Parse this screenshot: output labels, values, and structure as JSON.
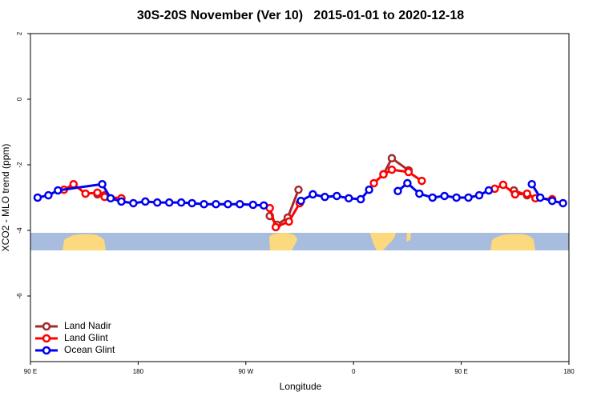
{
  "chart_data": {
    "type": "line",
    "title": "30S-20S November (Ver 10)   2015-01-01 to 2020-12-18",
    "x_label": "Longitude",
    "y_label": "XCO2 - MLO trend (ppm)",
    "xlim": [
      90,
      540
    ],
    "xticks": [
      {
        "value": 90,
        "label": "90 E"
      },
      {
        "value": 180,
        "label": "180"
      },
      {
        "value": 270,
        "label": "90 W"
      },
      {
        "value": 360,
        "label": "0"
      },
      {
        "value": 450,
        "label": "90 E"
      },
      {
        "value": 540,
        "label": "180"
      }
    ],
    "ylim": [
      -8,
      2
    ],
    "yticks": [
      -6,
      -4,
      -2,
      0,
      2
    ],
    "legend": "lower left",
    "series": [
      {
        "name": "Land Nadir",
        "color": "#a52a2a",
        "x": [
          146,
          152,
          null,
          290,
          296,
          305,
          314,
          null,
          385,
          392,
          406,
          null,
          494,
          505
        ],
        "values": [
          -2.9,
          -2.93,
          null,
          -3.56,
          -3.83,
          -3.61,
          -2.76,
          null,
          -2.29,
          -1.8,
          -2.17,
          null,
          -2.78,
          -2.93
        ]
      },
      {
        "name": "Land Glint",
        "color": "#ff0000",
        "x": [
          118,
          126,
          136,
          146,
          152,
          166,
          null,
          290,
          295,
          306,
          315,
          null,
          377,
          385,
          392,
          406,
          417,
          null,
          478,
          485,
          495,
          505,
          512,
          526
        ],
        "values": [
          -2.76,
          -2.59,
          -2.88,
          -2.85,
          -2.98,
          -3.02,
          null,
          -3.32,
          -3.9,
          -3.73,
          -3.17,
          null,
          -2.56,
          -2.29,
          -2.15,
          -2.22,
          -2.49,
          null,
          -2.73,
          -2.61,
          -2.9,
          -2.88,
          -3.02,
          -3.05
        ]
      },
      {
        "name": "Ocean Glint",
        "color": "#0000ee",
        "x": [
          96,
          105,
          113,
          150,
          157,
          166,
          176,
          186,
          196,
          206,
          216,
          225,
          235,
          245,
          255,
          265,
          276,
          285,
          null,
          316,
          326,
          336,
          346,
          356,
          366,
          373,
          null,
          397,
          405,
          415,
          426,
          436,
          446,
          456,
          465,
          473,
          null,
          509,
          516,
          526,
          535
        ],
        "values": [
          -3.0,
          -2.93,
          -2.78,
          -2.59,
          -3.02,
          -3.12,
          -3.17,
          -3.12,
          -3.15,
          -3.15,
          -3.15,
          -3.17,
          -3.2,
          -3.2,
          -3.2,
          -3.2,
          -3.22,
          -3.24,
          null,
          -3.1,
          -2.9,
          -2.98,
          -2.95,
          -3.02,
          -3.05,
          -2.76,
          null,
          -2.8,
          -2.56,
          -2.88,
          -3.0,
          -2.95,
          -3.0,
          -3.0,
          -2.93,
          -2.78,
          null,
          -2.59,
          -3.0,
          -3.1,
          -3.17
        ]
      }
    ]
  }
}
